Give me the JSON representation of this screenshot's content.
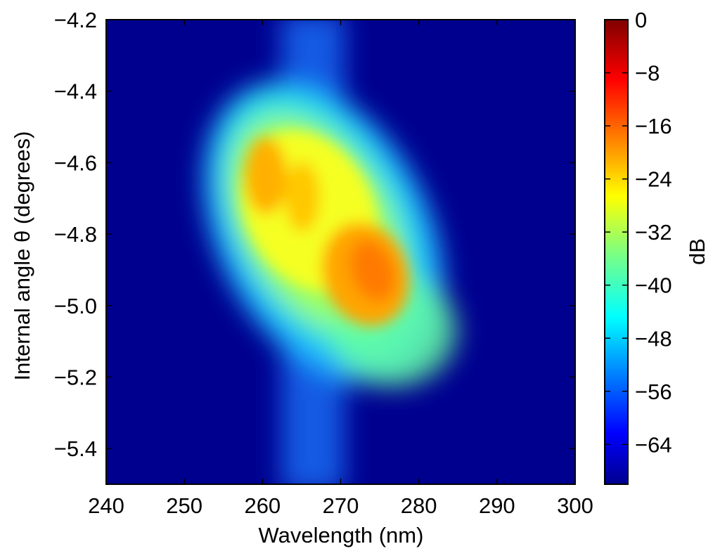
{
  "chart_data": {
    "type": "heatmap",
    "xlabel": "Wavelength (nm)",
    "ylabel": "Internal angle θ (degrees)",
    "colorbar_label": "dB",
    "x_range": [
      240,
      300
    ],
    "y_range": [
      -5.5,
      -4.2
    ],
    "z_range": [
      -70,
      0
    ],
    "x_ticks": [
      "240",
      "250",
      "260",
      "270",
      "280",
      "290",
      "300"
    ],
    "y_ticks": [
      "−4.2",
      "−4.4",
      "−4.6",
      "−4.8",
      "−5.0",
      "−5.2",
      "−5.4"
    ],
    "colorbar_ticks": [
      "0",
      "−8",
      "−16",
      "−24",
      "−32",
      "−40",
      "−48",
      "−56",
      "−64"
    ],
    "colormap": "jet",
    "background_level_dB": -70,
    "features": [
      {
        "name": "vertical band",
        "wavelength_nm": 267,
        "angle_range": [
          -5.5,
          -4.2
        ],
        "peak_dB": -58
      },
      {
        "name": "broad lobe",
        "wavelength_nm": 266,
        "angle": -4.75,
        "peak_dB": -34
      },
      {
        "name": "left hotspot",
        "wavelength_nm": 260,
        "angle": -4.65,
        "peak_dB": -18
      },
      {
        "name": "middle hotspot",
        "wavelength_nm": 265,
        "angle": -4.7,
        "peak_dB": -22
      },
      {
        "name": "main hotspot",
        "wavelength_nm": 273,
        "angle": -4.9,
        "peak_dB": -14
      }
    ]
  }
}
